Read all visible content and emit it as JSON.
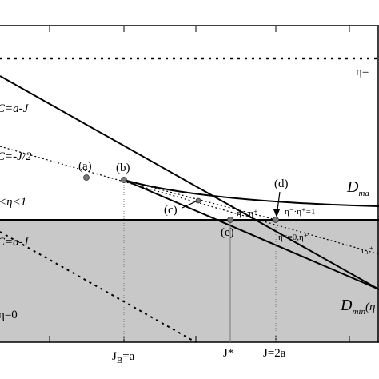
{
  "labels": {
    "c_aj_top": "C=a-J",
    "c_j2": "C=-J/2",
    "eta_mid": "<η<1",
    "c_aj_low": "C=a-J",
    "eta_zero": "η=0",
    "eta_top": "η=",
    "d_max": {
      "main": "D",
      "sub": "ma"
    },
    "d_min": {
      "main": "D",
      "sub": "min",
      "rest": "(η"
    },
    "pt_a": "(a)",
    "pt_b": "(b)",
    "pt_c": "(c)",
    "pt_d": "(d)",
    "pt_e": "(e)",
    "prod_one": "η⁻·η⁺=1",
    "prod_small": "η⁻·η⁺",
    "eta_zero_plus": "η⁻=0,η⁺",
    "eta_one_plus": "η₁⁺",
    "jb": {
      "main": "J",
      "sub": "B",
      "rest": "=a"
    },
    "jstar": "J*",
    "j2a": "J=2a"
  }
}
